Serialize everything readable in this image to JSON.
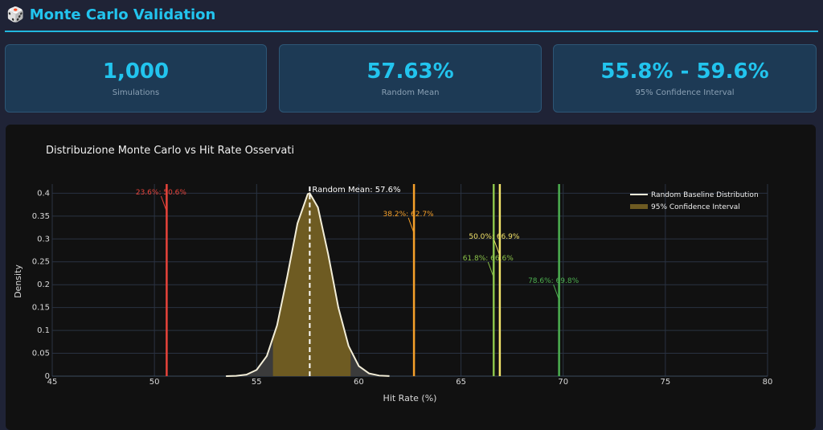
{
  "header": {
    "title": "Monte Carlo Validation"
  },
  "cards": [
    {
      "value": "1,000",
      "label": "Simulations"
    },
    {
      "value": "57.63%",
      "label": "Random Mean"
    },
    {
      "value": "55.8% - 59.6%",
      "label": "95% Confidence Interval"
    }
  ],
  "chart_data": {
    "type": "line",
    "title": "Distribuzione Monte Carlo vs Hit Rate Osservati",
    "x_label": "Hit Rate (%)",
    "y_label": "Density",
    "xlim": [
      45,
      80
    ],
    "xticks": [
      45,
      50,
      55,
      60,
      65,
      70,
      75,
      80
    ],
    "ylim": [
      0,
      0.42
    ],
    "yticks": [
      0,
      0.05,
      0.1,
      0.15,
      0.2,
      0.25,
      0.3,
      0.35,
      0.4
    ],
    "grid": true,
    "legend": "top-right",
    "series": [
      {
        "name": "Random Baseline Distribution",
        "color": "#f3eed8",
        "x": [
          53.5,
          54,
          54.5,
          55,
          55.5,
          56,
          56.5,
          57,
          57.5,
          57.6,
          58,
          58.5,
          59,
          59.5,
          60,
          60.5,
          61,
          61.5
        ],
        "values": [
          0.0001,
          0.0006,
          0.0033,
          0.0136,
          0.044,
          0.111,
          0.218,
          0.334,
          0.398,
          0.4,
          0.369,
          0.267,
          0.15,
          0.066,
          0.022,
          0.006,
          0.0012,
          0.0002
        ]
      },
      {
        "name": "95% Confidence Interval",
        "color": "#6e5b22",
        "x": [
          55.8,
          56,
          56.5,
          57,
          57.5,
          57.6,
          58,
          58.5,
          59,
          59.5,
          59.6
        ],
        "values": [
          0.079,
          0.111,
          0.218,
          0.334,
          0.398,
          0.4,
          0.369,
          0.267,
          0.15,
          0.066,
          0.054
        ]
      }
    ],
    "mean_line": {
      "x": 57.6,
      "label": "Random Mean: 57.6%",
      "color": "#ffffff"
    },
    "vlines": [
      {
        "x": 50.6,
        "label": "23.6%: 50.6%",
        "color": "#e8433a"
      },
      {
        "x": 62.7,
        "label": "38.2%: 62.7%",
        "color": "#f5a02a"
      },
      {
        "x": 66.6,
        "label": "61.8%: 66.6%",
        "color": "#8bc34a"
      },
      {
        "x": 66.9,
        "label": "50.0%: 66.9%",
        "color": "#f2e36b"
      },
      {
        "x": 69.8,
        "label": "78.6%: 69.8%",
        "color": "#4caf50"
      }
    ]
  }
}
